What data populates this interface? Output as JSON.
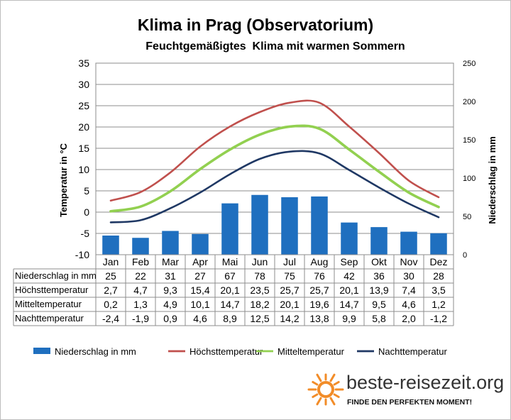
{
  "chart_data": {
    "type": "bar+line",
    "title": "Klima in Prag (Observatorium)",
    "subtitle": "Feuchtgemäßigtes  Klima mit warmen Sommern",
    "ylabel_left": "Temperatur in °C",
    "ylabel_right": "Niederschlag in mm",
    "ylim_left": [
      -10,
      35
    ],
    "ylim_right": [
      0,
      250
    ],
    "yticks_left": [
      "35",
      "30",
      "25",
      "20",
      "15",
      "10",
      "5",
      "0",
      "-5",
      "-10"
    ],
    "yticks_right": [
      "250",
      "200",
      "150",
      "100",
      "50",
      "0"
    ],
    "categories": [
      "Jan",
      "Feb",
      "Mar",
      "Apr",
      "Mai",
      "Jun",
      "Jul",
      "Aug",
      "Sep",
      "Okt",
      "Nov",
      "Dez"
    ],
    "grid": true,
    "legend_position": "bottom",
    "bar_series": {
      "name": "Niederschlag in mm",
      "color": "#1f6fbf",
      "axis": "right",
      "values": [
        25,
        22,
        31,
        27,
        67,
        78,
        75,
        76,
        42,
        36,
        30,
        28
      ]
    },
    "line_series": [
      {
        "name": "Höchsttemperatur",
        "color": "#c0504d",
        "axis": "left",
        "values": [
          2.7,
          4.7,
          9.3,
          15.4,
          20.1,
          23.5,
          25.7,
          25.7,
          20.1,
          13.9,
          7.4,
          3.5
        ]
      },
      {
        "name": "Mitteltemperatur",
        "color": "#92d050",
        "axis": "left",
        "values": [
          0.2,
          1.3,
          4.9,
          10.1,
          14.7,
          18.2,
          20.1,
          19.6,
          14.7,
          9.5,
          4.6,
          1.2
        ]
      },
      {
        "name": "Nachttemperatur",
        "color": "#1f3864",
        "axis": "left",
        "values": [
          -2.4,
          -1.9,
          0.9,
          4.6,
          8.9,
          12.5,
          14.2,
          13.8,
          9.9,
          5.8,
          2.0,
          -1.2
        ]
      }
    ],
    "table": {
      "rows": [
        {
          "label": "Niederschlag in mm",
          "cells": [
            "25",
            "22",
            "31",
            "27",
            "67",
            "78",
            "75",
            "76",
            "42",
            "36",
            "30",
            "28"
          ]
        },
        {
          "label": "Höchsttemperatur",
          "cells": [
            "2,7",
            "4,7",
            "9,3",
            "15,4",
            "20,1",
            "23,5",
            "25,7",
            "25,7",
            "20,1",
            "13,9",
            "7,4",
            "3,5"
          ]
        },
        {
          "label": "Mitteltemperatur",
          "cells": [
            "0,2",
            "1,3",
            "4,9",
            "10,1",
            "14,7",
            "18,2",
            "20,1",
            "19,6",
            "14,7",
            "9,5",
            "4,6",
            "1,2"
          ]
        },
        {
          "label": "Nachttemperatur",
          "cells": [
            "-2,4",
            "-1,9",
            "0,9",
            "4,6",
            "8,9",
            "12,5",
            "14,2",
            "13,8",
            "9,9",
            "5,8",
            "2,0",
            "-1,2"
          ]
        }
      ]
    }
  },
  "logo": {
    "name": "beste-reisezeit.org",
    "tagline": "FINDE DEN PERFEKTEN MOMENT!",
    "icon": "sun-icon",
    "icon_color": "#f28c28"
  }
}
